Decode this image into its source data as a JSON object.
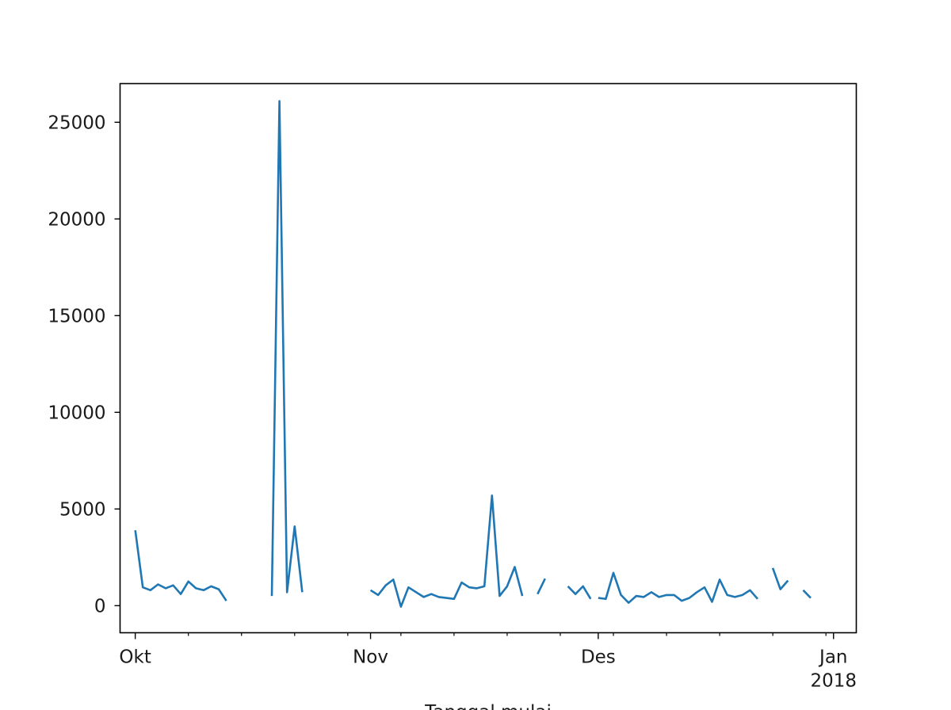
{
  "chart_data": {
    "type": "line",
    "title": "",
    "xlabel": "Tanggal mulai",
    "ylabel": "",
    "color": "#1f77b4",
    "grid": false,
    "legend": "none",
    "xlim": [
      "2017-09-29",
      "2018-01-04"
    ],
    "ylim": [
      -1400,
      27000
    ],
    "yticks": [
      0,
      5000,
      10000,
      15000,
      20000,
      25000
    ],
    "xticks": [
      {
        "date": "2017-10-01",
        "label": "Okt",
        "sublabel": ""
      },
      {
        "date": "2017-11-01",
        "label": "Nov",
        "sublabel": ""
      },
      {
        "date": "2017-12-01",
        "label": "Des",
        "sublabel": ""
      },
      {
        "date": "2018-01-01",
        "label": "Jan",
        "sublabel": "2018"
      }
    ],
    "minor_xticks": [
      "2017-10-08",
      "2017-10-15",
      "2017-10-22",
      "2017-10-29",
      "2017-11-05",
      "2017-11-12",
      "2017-11-19",
      "2017-11-26",
      "2017-12-03",
      "2017-12-10",
      "2017-12-17",
      "2017-12-24",
      "2017-12-31"
    ],
    "series": [
      {
        "points": [
          [
            "2017-10-01",
            3900
          ],
          [
            "2017-10-02",
            950
          ],
          [
            "2017-10-03",
            800
          ],
          [
            "2017-10-04",
            1100
          ],
          [
            "2017-10-05",
            900
          ],
          [
            "2017-10-06",
            1050
          ],
          [
            "2017-10-07",
            600
          ],
          [
            "2017-10-08",
            1250
          ],
          [
            "2017-10-09",
            900
          ],
          [
            "2017-10-10",
            800
          ],
          [
            "2017-10-11",
            1000
          ],
          [
            "2017-10-12",
            850
          ],
          [
            "2017-10-13",
            250
          ],
          [
            "2017-10-14",
            null
          ],
          [
            "2017-10-19",
            500
          ],
          [
            "2017-10-20",
            26100
          ],
          [
            "2017-10-21",
            700
          ],
          [
            "2017-10-22",
            4100
          ],
          [
            "2017-10-23",
            700
          ],
          [
            "2017-10-24",
            null
          ],
          [
            "2017-11-01",
            800
          ],
          [
            "2017-11-02",
            550
          ],
          [
            "2017-11-03",
            1050
          ],
          [
            "2017-11-04",
            1350
          ],
          [
            "2017-11-05",
            -50
          ],
          [
            "2017-11-06",
            950
          ],
          [
            "2017-11-07",
            700
          ],
          [
            "2017-11-08",
            450
          ],
          [
            "2017-11-09",
            600
          ],
          [
            "2017-11-10",
            450
          ],
          [
            "2017-11-11",
            400
          ],
          [
            "2017-11-12",
            350
          ],
          [
            "2017-11-13",
            1200
          ],
          [
            "2017-11-14",
            950
          ],
          [
            "2017-11-15",
            900
          ],
          [
            "2017-11-16",
            1000
          ],
          [
            "2017-11-17",
            5700
          ],
          [
            "2017-11-18",
            500
          ],
          [
            "2017-11-19",
            1000
          ],
          [
            "2017-11-20",
            2000
          ],
          [
            "2017-11-21",
            500
          ],
          [
            "2017-11-22",
            null
          ],
          [
            "2017-11-23",
            600
          ],
          [
            "2017-11-24",
            1400
          ],
          [
            "2017-11-25",
            null
          ],
          [
            "2017-11-27",
            1000
          ],
          [
            "2017-11-28",
            600
          ],
          [
            "2017-11-29",
            1000
          ],
          [
            "2017-11-30",
            350
          ],
          [
            "2017-12-01",
            null
          ],
          [
            "2017-12-01",
            400
          ],
          [
            "2017-12-02",
            350
          ],
          [
            "2017-12-03",
            1700
          ],
          [
            "2017-12-04",
            550
          ],
          [
            "2017-12-05",
            150
          ],
          [
            "2017-12-06",
            500
          ],
          [
            "2017-12-07",
            450
          ],
          [
            "2017-12-08",
            700
          ],
          [
            "2017-12-09",
            450
          ],
          [
            "2017-12-10",
            550
          ],
          [
            "2017-12-11",
            550
          ],
          [
            "2017-12-12",
            250
          ],
          [
            "2017-12-13",
            400
          ],
          [
            "2017-12-14",
            700
          ],
          [
            "2017-12-15",
            950
          ],
          [
            "2017-12-16",
            200
          ],
          [
            "2017-12-17",
            1350
          ],
          [
            "2017-12-18",
            550
          ],
          [
            "2017-12-19",
            450
          ],
          [
            "2017-12-20",
            550
          ],
          [
            "2017-12-21",
            800
          ],
          [
            "2017-12-22",
            350
          ],
          [
            "2017-12-23",
            null
          ],
          [
            "2017-12-24",
            1950
          ],
          [
            "2017-12-25",
            850
          ],
          [
            "2017-12-26",
            1300
          ],
          [
            "2017-12-27",
            null
          ],
          [
            "2017-12-28",
            800
          ],
          [
            "2017-12-29",
            400
          ]
        ]
      }
    ]
  }
}
